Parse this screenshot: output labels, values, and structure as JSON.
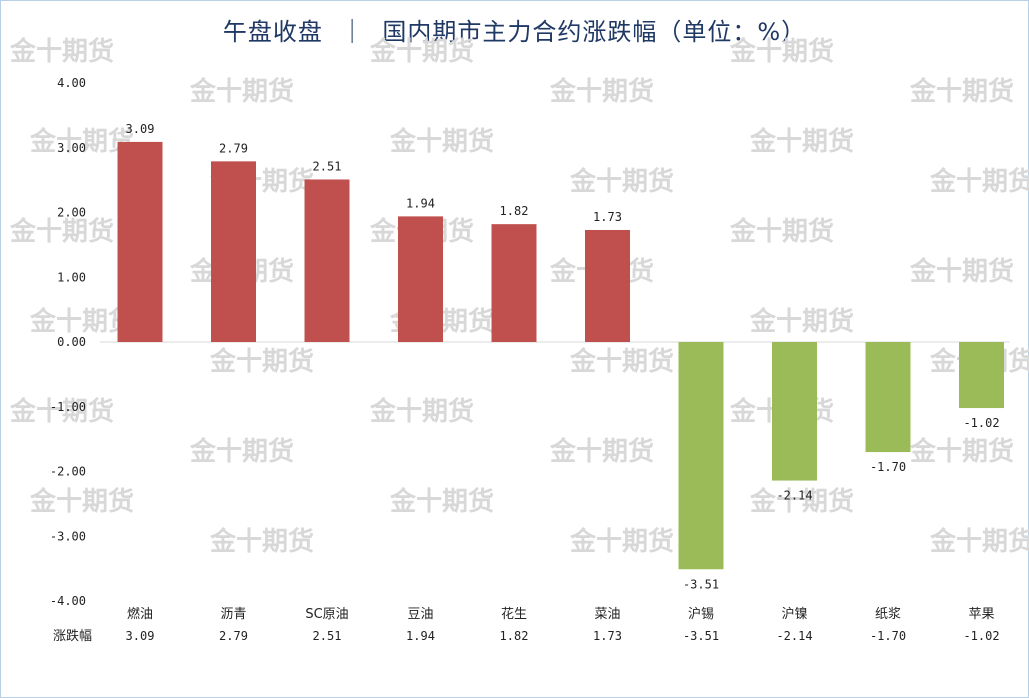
{
  "header": {
    "title": "午盘收盘  ｜  国内期市主力合约涨跌幅（单位：%）"
  },
  "watermark": {
    "text": "金十期货"
  },
  "colors": {
    "positive": "#c0504d",
    "negative": "#9bbb59",
    "title": "#1f3864"
  },
  "chart_data": {
    "type": "bar",
    "title": "午盘收盘  ｜  国内期市主力合约涨跌幅（单位：%）",
    "categories": [
      "燃油",
      "沥青",
      "SC原油",
      "豆油",
      "花生",
      "菜油",
      "沪锡",
      "沪镍",
      "纸浆",
      "苹果"
    ],
    "series": [
      {
        "name": "涨跌幅",
        "values": [
          3.09,
          2.79,
          2.51,
          1.94,
          1.82,
          1.73,
          -3.51,
          -2.14,
          -1.7,
          -1.02
        ]
      }
    ],
    "data_labels": [
      "3.09",
      "2.79",
      "2.51",
      "1.94",
      "1.82",
      "1.73",
      "-3.51",
      "-2.14",
      "-1.70",
      "-1.02"
    ],
    "y_ticks": [
      "4.00",
      "3.00",
      "2.00",
      "1.00",
      "0.00",
      "-1.00",
      "-2.00",
      "-3.00",
      "-4.00"
    ],
    "ylim": [
      -4,
      4
    ],
    "grid": false,
    "table_row_label": "涨跌幅"
  }
}
